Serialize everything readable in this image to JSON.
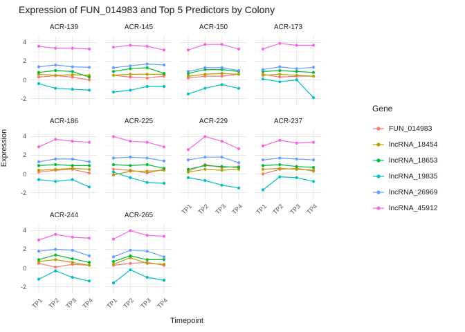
{
  "title": "Expression of FUN_014983 and Top 5 Predictors by Colony",
  "axes": {
    "x_label": "Timepoint",
    "y_label": "Expression",
    "x_ticks": [
      "TP1",
      "TP2",
      "TP3",
      "TP4"
    ],
    "y_ticks": [
      "4",
      "2",
      "0",
      "-2"
    ],
    "y_tick_values": [
      4,
      2,
      0,
      -2
    ],
    "y_minor_values": [
      3,
      1,
      -1
    ],
    "ylim": [
      -2.7,
      4.7
    ]
  },
  "legend": {
    "title": "Gene",
    "entries": [
      {
        "label": "FUN_014983",
        "color": "#F8766D"
      },
      {
        "label": "lncRNA_18454",
        "color": "#B79F00"
      },
      {
        "label": "lncRNA_18653",
        "color": "#00BA38"
      },
      {
        "label": "lncRNA_19835",
        "color": "#00BFC4"
      },
      {
        "label": "lncRNA_26969",
        "color": "#619CFF"
      },
      {
        "label": "lncRNA_45912",
        "color": "#F564E2"
      }
    ]
  },
  "chart_data": {
    "type": "line",
    "x": [
      "TP1",
      "TP2",
      "TP3",
      "TP4"
    ],
    "title": "Expression of FUN_014983 and Top 5 Predictors by Colony",
    "xlabel": "Timepoint",
    "ylabel": "Expression",
    "ylim": [
      -2.7,
      4.7
    ],
    "grid": true,
    "legend_position": "right",
    "facets": [
      {
        "name": "ACR-139",
        "series": [
          {
            "gene": "FUN_014983",
            "values": [
              0.3,
              0.45,
              0.3,
              0.0
            ]
          },
          {
            "gene": "lncRNA_18454",
            "values": [
              0.6,
              0.5,
              0.55,
              0.5
            ]
          },
          {
            "gene": "lncRNA_18653",
            "values": [
              0.8,
              1.0,
              0.9,
              0.3
            ]
          },
          {
            "gene": "lncRNA_19835",
            "values": [
              -0.4,
              -0.9,
              -1.0,
              -1.1
            ]
          },
          {
            "gene": "lncRNA_26969",
            "values": [
              1.4,
              1.6,
              1.4,
              1.35
            ]
          },
          {
            "gene": "lncRNA_45912",
            "values": [
              3.6,
              3.4,
              3.4,
              3.3
            ]
          }
        ]
      },
      {
        "name": "ACR-145",
        "series": [
          {
            "gene": "FUN_014983",
            "values": [
              0.5,
              0.3,
              0.2,
              0.4
            ]
          },
          {
            "gene": "lncRNA_18454",
            "values": [
              0.5,
              0.6,
              0.6,
              0.6
            ]
          },
          {
            "gene": "lncRNA_18653",
            "values": [
              0.9,
              1.2,
              1.3,
              0.7
            ]
          },
          {
            "gene": "lncRNA_19835",
            "values": [
              -1.3,
              -1.1,
              -0.7,
              -0.7
            ]
          },
          {
            "gene": "lncRNA_26969",
            "values": [
              1.3,
              1.5,
              1.7,
              1.6
            ]
          },
          {
            "gene": "lncRNA_45912",
            "values": [
              3.5,
              3.7,
              3.6,
              3.2
            ]
          }
        ]
      },
      {
        "name": "ACR-150",
        "series": [
          {
            "gene": "FUN_014983",
            "values": [
              0.2,
              0.4,
              0.4,
              0.6
            ]
          },
          {
            "gene": "lncRNA_18454",
            "values": [
              0.4,
              0.6,
              0.7,
              0.6
            ]
          },
          {
            "gene": "lncRNA_18653",
            "values": [
              0.7,
              1.1,
              1.1,
              0.9
            ]
          },
          {
            "gene": "lncRNA_19835",
            "values": [
              -1.5,
              -0.9,
              -0.5,
              -0.9
            ]
          },
          {
            "gene": "lncRNA_26969",
            "values": [
              0.9,
              1.3,
              1.3,
              1.0
            ]
          },
          {
            "gene": "lncRNA_45912",
            "values": [
              3.2,
              3.8,
              3.8,
              3.3
            ]
          }
        ]
      },
      {
        "name": "ACR-173",
        "series": [
          {
            "gene": "FUN_014983",
            "values": [
              0.6,
              0.3,
              0.4,
              0.4
            ]
          },
          {
            "gene": "lncRNA_18454",
            "values": [
              0.5,
              0.6,
              0.5,
              0.4
            ]
          },
          {
            "gene": "lncRNA_18653",
            "values": [
              0.9,
              1.0,
              0.9,
              0.8
            ]
          },
          {
            "gene": "lncRNA_19835",
            "values": [
              0.1,
              -0.2,
              0.0,
              -1.9
            ]
          },
          {
            "gene": "lncRNA_26969",
            "values": [
              1.1,
              1.4,
              1.2,
              1.35
            ]
          },
          {
            "gene": "lncRNA_45912",
            "values": [
              3.3,
              3.9,
              3.7,
              3.7
            ]
          }
        ]
      },
      {
        "name": "ACR-186",
        "series": [
          {
            "gene": "FUN_014983",
            "values": [
              0.2,
              0.4,
              0.5,
              0.1
            ]
          },
          {
            "gene": "lncRNA_18454",
            "values": [
              0.4,
              0.5,
              0.6,
              0.5
            ]
          },
          {
            "gene": "lncRNA_18653",
            "values": [
              0.9,
              1.0,
              0.9,
              0.9
            ]
          },
          {
            "gene": "lncRNA_19835",
            "values": [
              -0.6,
              -0.8,
              -0.6,
              -1.4
            ]
          },
          {
            "gene": "lncRNA_26969",
            "values": [
              1.3,
              1.6,
              1.6,
              1.3
            ]
          },
          {
            "gene": "lncRNA_45912",
            "values": [
              2.9,
              3.7,
              3.5,
              3.4
            ]
          }
        ]
      },
      {
        "name": "ACR-225",
        "series": [
          {
            "gene": "FUN_014983",
            "values": [
              0.5,
              0.4,
              0.1,
              0.5
            ]
          },
          {
            "gene": "lncRNA_18454",
            "values": [
              -0.1,
              0.3,
              0.3,
              0.4
            ]
          },
          {
            "gene": "lncRNA_18653",
            "values": [
              1.0,
              0.9,
              1.0,
              0.6
            ]
          },
          {
            "gene": "lncRNA_19835",
            "values": [
              0.2,
              -0.4,
              -0.9,
              -1.0
            ]
          },
          {
            "gene": "lncRNA_26969",
            "values": [
              1.7,
              1.8,
              1.7,
              1.4
            ]
          },
          {
            "gene": "lncRNA_45912",
            "values": [
              4.0,
              3.5,
              3.4,
              2.9
            ]
          }
        ]
      },
      {
        "name": "ACR-229",
        "series": [
          {
            "gene": "FUN_014983",
            "values": [
              0.3,
              1.0,
              0.7,
              0.8
            ]
          },
          {
            "gene": "lncRNA_18454",
            "values": [
              0.2,
              0.5,
              0.4,
              0.5
            ]
          },
          {
            "gene": "lncRNA_18653",
            "values": [
              0.5,
              0.9,
              0.8,
              0.7
            ]
          },
          {
            "gene": "lncRNA_19835",
            "values": [
              -0.4,
              -0.7,
              -1.2,
              -1.5
            ]
          },
          {
            "gene": "lncRNA_26969",
            "values": [
              1.5,
              1.8,
              1.8,
              1.2
            ]
          },
          {
            "gene": "lncRNA_45912",
            "values": [
              2.6,
              4.0,
              3.5,
              2.7
            ]
          }
        ]
      },
      {
        "name": "ACR-237",
        "series": [
          {
            "gene": "FUN_014983",
            "values": [
              0.0,
              0.5,
              0.6,
              0.3
            ]
          },
          {
            "gene": "lncRNA_18454",
            "values": [
              0.5,
              0.6,
              0.5,
              0.4
            ]
          },
          {
            "gene": "lncRNA_18653",
            "values": [
              0.9,
              1.0,
              0.8,
              0.7
            ]
          },
          {
            "gene": "lncRNA_19835",
            "values": [
              -1.7,
              -0.3,
              -0.4,
              -0.8
            ]
          },
          {
            "gene": "lncRNA_26969",
            "values": [
              1.5,
              1.7,
              1.6,
              1.5
            ]
          },
          {
            "gene": "lncRNA_45912",
            "values": [
              3.0,
              3.6,
              3.3,
              3.4
            ]
          }
        ]
      },
      {
        "name": "ACR-244",
        "series": [
          {
            "gene": "FUN_014983",
            "values": [
              0.5,
              0.1,
              0.4,
              0.3
            ]
          },
          {
            "gene": "lncRNA_18454",
            "values": [
              0.7,
              0.9,
              0.6,
              0.3
            ]
          },
          {
            "gene": "lncRNA_18653",
            "values": [
              0.9,
              1.4,
              1.0,
              0.6
            ]
          },
          {
            "gene": "lncRNA_19835",
            "values": [
              -1.2,
              -0.3,
              -1.0,
              -1.4
            ]
          },
          {
            "gene": "lncRNA_26969",
            "values": [
              1.8,
              2.0,
              1.9,
              1.3
            ]
          },
          {
            "gene": "lncRNA_45912",
            "values": [
              3.0,
              3.6,
              3.3,
              3.2
            ]
          }
        ]
      },
      {
        "name": "ACR-265",
        "series": [
          {
            "gene": "FUN_014983",
            "values": [
              0.3,
              0.5,
              0.6,
              0.3
            ]
          },
          {
            "gene": "lncRNA_18454",
            "values": [
              0.4,
              1.1,
              0.5,
              0.4
            ]
          },
          {
            "gene": "lncRNA_18653",
            "values": [
              0.7,
              1.3,
              0.9,
              0.9
            ]
          },
          {
            "gene": "lncRNA_19835",
            "values": [
              -1.6,
              -0.2,
              -1.0,
              -1.3
            ]
          },
          {
            "gene": "lncRNA_26969",
            "values": [
              1.2,
              1.9,
              1.8,
              1.2
            ]
          },
          {
            "gene": "lncRNA_45912",
            "values": [
              3.1,
              4.0,
              3.5,
              3.4
            ]
          }
        ]
      }
    ]
  }
}
